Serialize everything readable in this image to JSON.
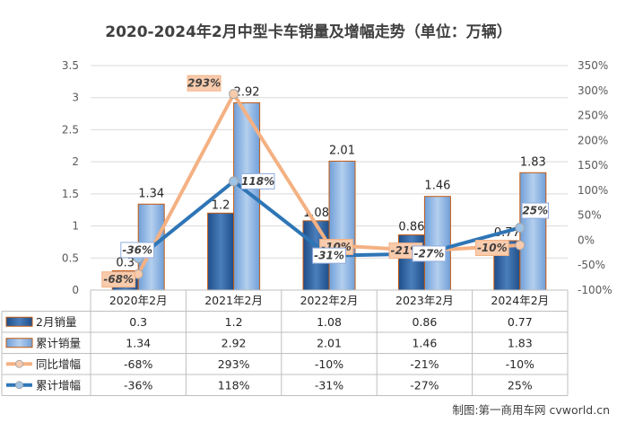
{
  "title": "2020-2024年2月中型卡车销量及增幅走势（单位：万辆）",
  "source": "制图:第一商用车网 cvworld.cn",
  "chart_data": {
    "type": "bar",
    "categories": [
      "2020年2月",
      "2021年2月",
      "2022年2月",
      "2023年2月",
      "2024年2月"
    ],
    "y_left": {
      "lim": [
        0,
        3.5
      ],
      "ticks": [
        "0",
        "0.5",
        "1",
        "1.5",
        "2",
        "2.5",
        "3",
        "3.5"
      ]
    },
    "y_right": {
      "lim": [
        -100,
        350
      ],
      "ticks": [
        "-100%",
        "-50%",
        "0%",
        "50%",
        "100%",
        "150%",
        "200%",
        "250%",
        "300%",
        "350%"
      ]
    },
    "grid": true,
    "bar_series": [
      {
        "name": "2月销量",
        "values": [
          0.3,
          1.2,
          1.08,
          0.86,
          0.77
        ],
        "labels": [
          "0.3",
          "1.2",
          "1.08",
          "0.86",
          "0.77"
        ],
        "color": "#2f5f9a"
      },
      {
        "name": "累计销量",
        "values": [
          1.34,
          2.92,
          2.01,
          1.46,
          1.83
        ],
        "labels": [
          "1.34",
          "2.92",
          "2.01",
          "1.46",
          "1.83"
        ],
        "color": "#8db4e2"
      }
    ],
    "line_series": [
      {
        "name": "同比增幅",
        "values": [
          -68,
          293,
          -10,
          -21,
          -10
        ],
        "labels": [
          "-68%",
          "293%",
          "-10%",
          "-21%",
          "-10%"
        ],
        "color": "#f4b183",
        "axis": "right"
      },
      {
        "name": "累计增幅",
        "values": [
          -36,
          118,
          -31,
          -27,
          25
        ],
        "labels": [
          "-36%",
          "118%",
          "-31%",
          "-27%",
          "25%"
        ],
        "color": "#2e75b6",
        "axis": "right"
      }
    ]
  }
}
